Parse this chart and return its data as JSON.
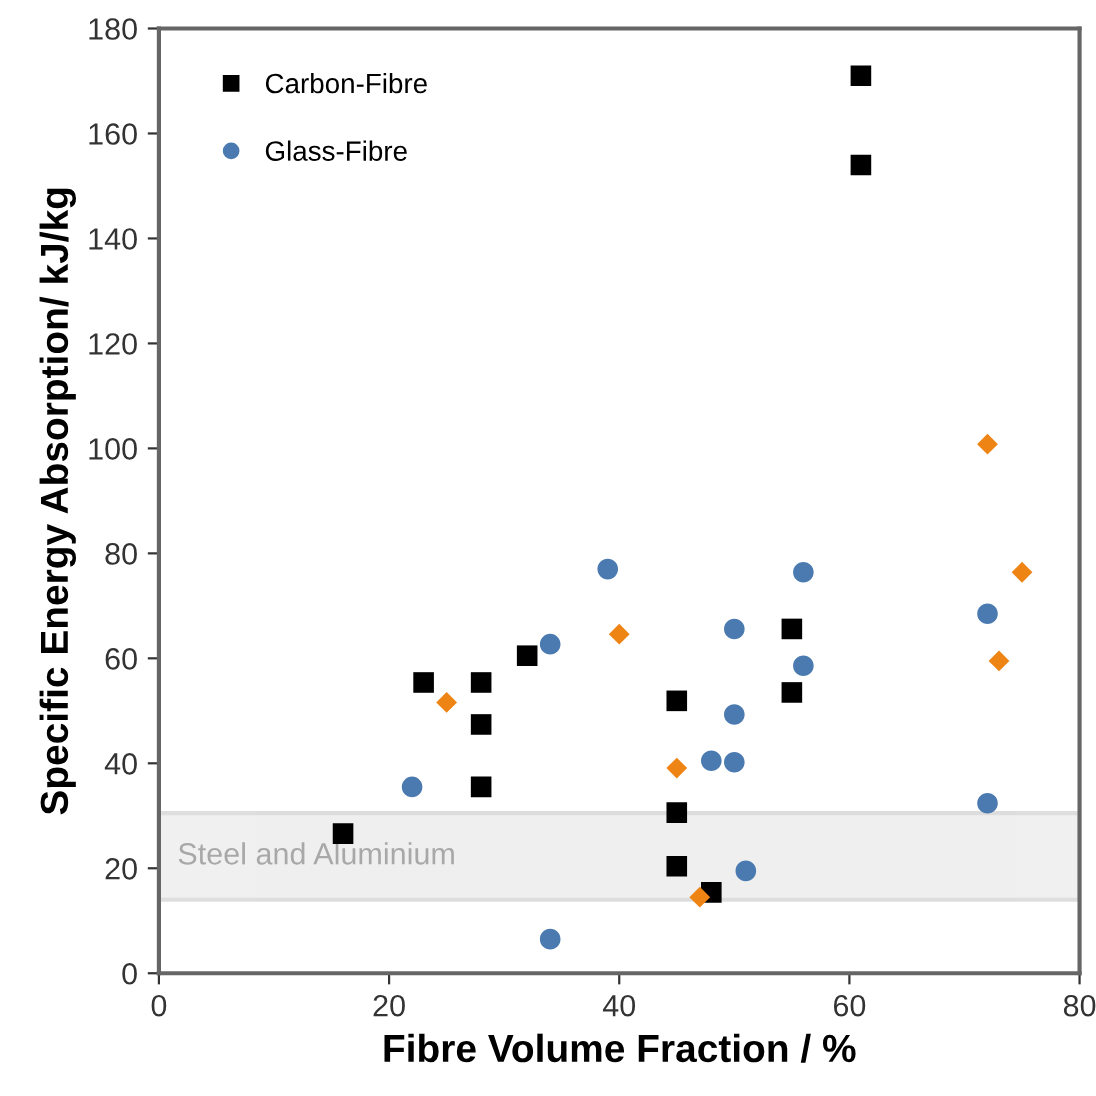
{
  "chart_data": {
    "type": "scatter",
    "xlabel": "Fibre Volume Fraction / %",
    "ylabel": "Specific Energy Absorption/ kJ/kg",
    "xlim": [
      0,
      80
    ],
    "ylim": [
      0,
      180
    ],
    "xticks": [
      0,
      20,
      40,
      60,
      80
    ],
    "yticks": [
      0,
      20,
      40,
      60,
      80,
      100,
      120,
      140,
      160,
      180
    ],
    "grid": false,
    "legend": "top left",
    "series": [
      {
        "name": "Carbon-Fibre",
        "color": "#000000",
        "marker": "square",
        "x": [
          16,
          23,
          28,
          28,
          28,
          32,
          45,
          45,
          45,
          48,
          55,
          55,
          61,
          61
        ],
        "values": [
          26.6,
          55.4,
          55.4,
          47.4,
          35.5,
          60.5,
          51.9,
          30.6,
          20.4,
          15.4,
          65.6,
          53.5,
          171,
          154
        ]
      },
      {
        "name": "Glass-Fibre",
        "color": "#4a7ab0",
        "marker": "circle",
        "x": [
          22,
          34,
          34,
          39,
          48,
          50,
          50,
          50,
          51,
          56,
          56,
          72,
          72
        ],
        "values": [
          35.5,
          6.5,
          62.7,
          77,
          40.5,
          40.2,
          49.3,
          65.6,
          19.5,
          76.4,
          58.6,
          68.5,
          32.4
        ]
      },
      {
        "color": "#ee8414",
        "marker": "diamond",
        "x": [
          25,
          40,
          45,
          47,
          72,
          73,
          75
        ],
        "values": [
          51.6,
          64.6,
          39.1,
          14.5,
          100.8,
          59.5,
          76.4
        ]
      }
    ],
    "bands": [
      {
        "axis": "y",
        "from": 14,
        "to": 30.5,
        "label": "Steel and Aluminium",
        "color": "#e6e6e6"
      }
    ]
  }
}
